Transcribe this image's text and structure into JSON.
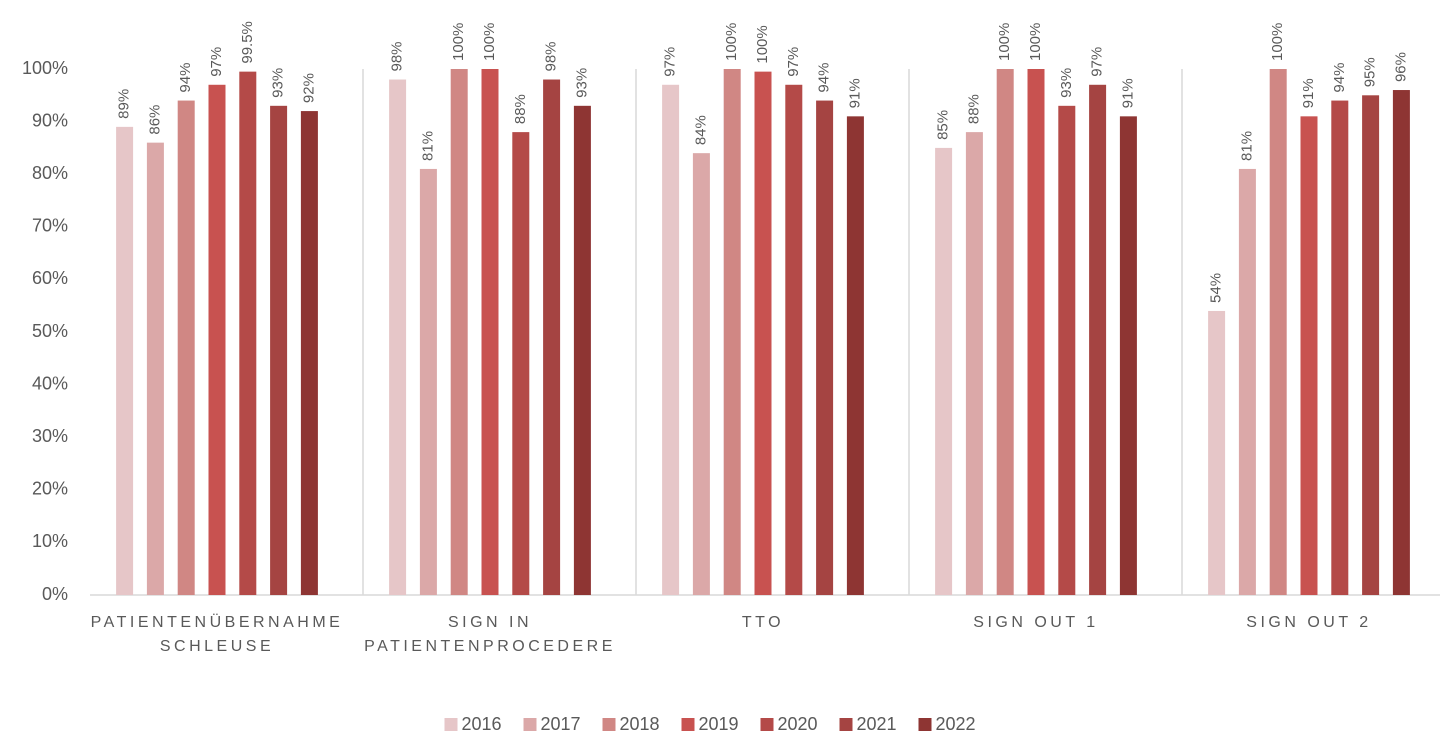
{
  "chart_data": {
    "type": "bar",
    "categories": [
      "PATIENTENÜBERNAHME\nSCHLEUSE",
      "SIGN IN\nPATIENTENPROCEDERE",
      "TTO",
      "SIGN OUT 1",
      "SIGN OUT 2"
    ],
    "series": [
      {
        "name": "2016",
        "color": "#e6c6c8",
        "values": [
          89,
          98,
          97,
          85,
          54
        ],
        "value_labels": [
          "89%",
          "98%",
          "97%",
          "85%",
          "54%"
        ]
      },
      {
        "name": "2017",
        "color": "#dba8a8",
        "values": [
          86,
          81,
          84,
          88,
          81
        ],
        "value_labels": [
          "86%",
          "81%",
          "84%",
          "88%",
          "81%"
        ]
      },
      {
        "name": "2018",
        "color": "#d08784",
        "values": [
          94,
          100,
          100,
          100,
          100
        ],
        "value_labels": [
          "94%",
          "100%",
          "100%",
          "100%",
          "100%"
        ]
      },
      {
        "name": "2019",
        "color": "#c85250",
        "values": [
          97,
          100,
          99.5,
          100,
          91
        ],
        "value_labels": [
          "97%",
          "100%",
          "100%",
          "100%",
          "91%"
        ]
      },
      {
        "name": "2020",
        "color": "#b44a48",
        "values": [
          99.5,
          88,
          97,
          93,
          94
        ],
        "value_labels": [
          "99.5%",
          "88%",
          "97%",
          "93%",
          "94%"
        ]
      },
      {
        "name": "2021",
        "color": "#a54442",
        "values": [
          93,
          98,
          94,
          97,
          95
        ],
        "value_labels": [
          "93%",
          "98%",
          "94%",
          "97%",
          "95%"
        ]
      },
      {
        "name": "2022",
        "color": "#8e3533",
        "values": [
          92,
          93,
          91,
          91,
          96
        ],
        "value_labels": [
          "92%",
          "93%",
          "91%",
          "91%",
          "96%"
        ]
      }
    ],
    "ylim": [
      0,
      100
    ],
    "yticks": [
      {
        "value": 0,
        "label": "0%"
      },
      {
        "value": 10,
        "label": "10%"
      },
      {
        "value": 20,
        "label": "20%"
      },
      {
        "value": 30,
        "label": "30%"
      },
      {
        "value": 40,
        "label": "40%"
      },
      {
        "value": 50,
        "label": "50%"
      },
      {
        "value": 60,
        "label": "60%"
      },
      {
        "value": 70,
        "label": "70%"
      },
      {
        "value": 80,
        "label": "80%"
      },
      {
        "value": 90,
        "label": "90%"
      },
      {
        "value": 100,
        "label": "100%"
      }
    ],
    "grid": false,
    "legend": "bottom"
  }
}
